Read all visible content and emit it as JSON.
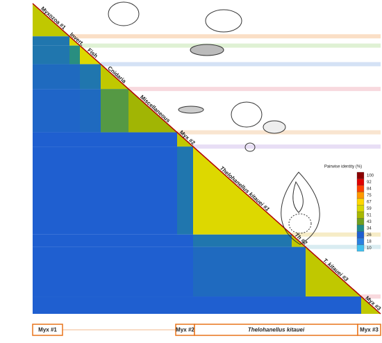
{
  "chart_data": {
    "type": "heatmap",
    "groups": [
      "Myxozoa #1",
      "Invert.",
      "Fish",
      "Cnidaria",
      "Miscellaneous",
      "Myx #2",
      "Thelohanellus kitauei #1",
      "Th #2",
      "T. kitauei #3",
      "Myx #3"
    ],
    "matrix": [
      [
        55
      ],
      [
        30,
        60
      ],
      [
        30,
        35,
        60
      ],
      [
        28,
        28,
        30,
        55
      ],
      [
        27,
        27,
        28,
        40,
        50
      ],
      [
        26,
        26,
        26,
        26,
        26,
        55
      ],
      [
        26,
        26,
        26,
        26,
        26,
        30,
        60
      ],
      [
        26,
        26,
        26,
        26,
        26,
        26,
        30,
        55
      ],
      [
        26,
        26,
        26,
        26,
        26,
        26,
        28,
        28,
        55
      ],
      [
        26,
        26,
        26,
        26,
        26,
        26,
        26,
        26,
        26,
        55
      ]
    ],
    "colorbar_title": "Pairwise identity (%)",
    "colorbar_ticks": [
      100,
      92,
      84,
      75,
      67,
      59,
      51,
      43,
      34,
      26,
      18,
      10
    ],
    "colorbar_colors": [
      "#8b0000",
      "#e00000",
      "#ff4000",
      "#ff9900",
      "#ffd700",
      "#d8d800",
      "#a8b800",
      "#70a020",
      "#208c8c",
      "#1f5fd0",
      "#2a80e0",
      "#40c0f0"
    ],
    "bottom_labels": [
      "Myx #1",
      "Myx #2",
      "Thelohanellus kitauei",
      "Myx #3"
    ]
  }
}
